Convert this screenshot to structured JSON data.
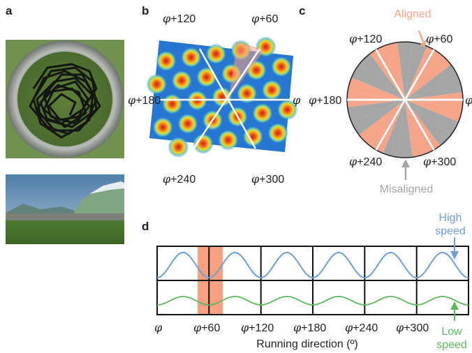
{
  "panels": {
    "a": "a",
    "b": "b",
    "c": "c",
    "d": "d"
  },
  "panel_b": {
    "labels": {
      "p120": "+120",
      "p60": "+60",
      "p180": "+180",
      "p0": "",
      "p240": "+240",
      "p300": "+300"
    }
  },
  "panel_c": {
    "aligned": "Aligned",
    "misaligned": "Misaligned",
    "labels": {
      "p120": "+120",
      "p60": "+60",
      "p180": "+180",
      "p0": "",
      "p240": "+240",
      "p300": "+300"
    }
  },
  "panel_d": {
    "high_speed": [
      "High",
      "speed"
    ],
    "low_speed": [
      "Low",
      "speed"
    ],
    "xlabel": "Running direction (º)",
    "ticks": [
      "",
      "+60",
      "+120",
      "+180",
      "+240",
      "+300"
    ]
  },
  "colors": {
    "aligned": "#f4a58a",
    "misaligned": "#a6a6a6",
    "high_speed": "#6f9ed6",
    "low_speed": "#5cb85c",
    "highlight": "#f7a182"
  }
}
